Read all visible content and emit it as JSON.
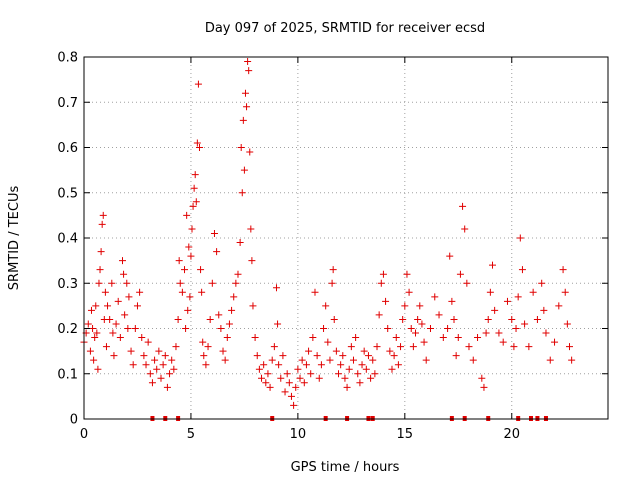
{
  "chart_data": {
    "type": "scatter",
    "title": "Day 097 of 2025, SRMTID for receiver ecsd",
    "xlabel": "GPS time / hours",
    "ylabel": "SRMTID / TECUs",
    "xlim": [
      0,
      24.5
    ],
    "ylim": [
      0,
      0.8
    ],
    "xticks": [
      0,
      5,
      10,
      15,
      20
    ],
    "yticks": [
      0,
      0.1,
      0.2,
      0.3,
      0.4,
      0.5,
      0.6,
      0.7,
      0.8
    ],
    "xtick_labels": [
      "0",
      "5",
      "10",
      "15",
      "20"
    ],
    "ytick_labels": [
      "0",
      "0.1",
      "0.2",
      "0.3",
      "0.4",
      "0.5",
      "0.6",
      "0.7",
      "0.8"
    ],
    "grid": true,
    "marker": "+",
    "color": "#e00000",
    "series": [
      {
        "name": "SRMTID",
        "points": [
          [
            0.0,
            0.17
          ],
          [
            0.1,
            0.19
          ],
          [
            0.2,
            0.21
          ],
          [
            0.3,
            0.15
          ],
          [
            0.35,
            0.24
          ],
          [
            0.4,
            0.2
          ],
          [
            0.45,
            0.13
          ],
          [
            0.5,
            0.18
          ],
          [
            0.55,
            0.25
          ],
          [
            0.6,
            0.19
          ],
          [
            0.65,
            0.11
          ],
          [
            0.7,
            0.3
          ],
          [
            0.75,
            0.33
          ],
          [
            0.8,
            0.37
          ],
          [
            0.85,
            0.43
          ],
          [
            0.9,
            0.45
          ],
          [
            0.95,
            0.22
          ],
          [
            1.0,
            0.28
          ],
          [
            1.05,
            0.16
          ],
          [
            1.1,
            0.25
          ],
          [
            1.2,
            0.22
          ],
          [
            1.3,
            0.3
          ],
          [
            1.35,
            0.19
          ],
          [
            1.4,
            0.14
          ],
          [
            1.5,
            0.21
          ],
          [
            1.6,
            0.26
          ],
          [
            1.7,
            0.18
          ],
          [
            1.8,
            0.35
          ],
          [
            1.85,
            0.32
          ],
          [
            1.9,
            0.23
          ],
          [
            2.0,
            0.3
          ],
          [
            2.05,
            0.2
          ],
          [
            2.1,
            0.27
          ],
          [
            2.2,
            0.15
          ],
          [
            2.3,
            0.12
          ],
          [
            2.4,
            0.2
          ],
          [
            2.5,
            0.25
          ],
          [
            2.6,
            0.28
          ],
          [
            2.7,
            0.18
          ],
          [
            2.8,
            0.14
          ],
          [
            2.9,
            0.12
          ],
          [
            3.0,
            0.17
          ],
          [
            3.1,
            0.1
          ],
          [
            3.2,
            0.08
          ],
          [
            3.3,
            0.13
          ],
          [
            3.4,
            0.11
          ],
          [
            3.5,
            0.15
          ],
          [
            3.6,
            0.09
          ],
          [
            3.7,
            0.12
          ],
          [
            3.8,
            0.14
          ],
          [
            3.9,
            0.07
          ],
          [
            4.0,
            0.1
          ],
          [
            4.1,
            0.13
          ],
          [
            4.2,
            0.11
          ],
          [
            4.3,
            0.16
          ],
          [
            4.4,
            0.22
          ],
          [
            4.45,
            0.35
          ],
          [
            4.5,
            0.3
          ],
          [
            4.6,
            0.28
          ],
          [
            4.7,
            0.33
          ],
          [
            4.75,
            0.2
          ],
          [
            4.8,
            0.45
          ],
          [
            4.85,
            0.24
          ],
          [
            4.9,
            0.38
          ],
          [
            4.95,
            0.27
          ],
          [
            5.0,
            0.36
          ],
          [
            5.05,
            0.42
          ],
          [
            5.1,
            0.47
          ],
          [
            5.15,
            0.51
          ],
          [
            5.2,
            0.54
          ],
          [
            5.25,
            0.48
          ],
          [
            5.3,
            0.61
          ],
          [
            5.35,
            0.74
          ],
          [
            5.4,
            0.6
          ],
          [
            5.45,
            0.33
          ],
          [
            5.5,
            0.28
          ],
          [
            5.55,
            0.17
          ],
          [
            5.6,
            0.14
          ],
          [
            5.7,
            0.12
          ],
          [
            5.8,
            0.16
          ],
          [
            5.9,
            0.22
          ],
          [
            6.0,
            0.3
          ],
          [
            6.1,
            0.41
          ],
          [
            6.2,
            0.37
          ],
          [
            6.3,
            0.23
          ],
          [
            6.4,
            0.2
          ],
          [
            6.5,
            0.15
          ],
          [
            6.6,
            0.13
          ],
          [
            6.7,
            0.18
          ],
          [
            6.8,
            0.21
          ],
          [
            6.9,
            0.24
          ],
          [
            7.0,
            0.27
          ],
          [
            7.1,
            0.3
          ],
          [
            7.2,
            0.32
          ],
          [
            7.3,
            0.39
          ],
          [
            7.35,
            0.6
          ],
          [
            7.4,
            0.5
          ],
          [
            7.45,
            0.66
          ],
          [
            7.5,
            0.55
          ],
          [
            7.55,
            0.72
          ],
          [
            7.6,
            0.69
          ],
          [
            7.65,
            0.79
          ],
          [
            7.7,
            0.77
          ],
          [
            7.75,
            0.59
          ],
          [
            7.8,
            0.42
          ],
          [
            7.85,
            0.35
          ],
          [
            7.9,
            0.25
          ],
          [
            8.0,
            0.18
          ],
          [
            8.1,
            0.14
          ],
          [
            8.2,
            0.11
          ],
          [
            8.3,
            0.09
          ],
          [
            8.4,
            0.12
          ],
          [
            8.5,
            0.08
          ],
          [
            8.6,
            0.1
          ],
          [
            8.7,
            0.07
          ],
          [
            8.8,
            0.13
          ],
          [
            8.9,
            0.16
          ],
          [
            9.0,
            0.29
          ],
          [
            9.05,
            0.21
          ],
          [
            9.1,
            0.12
          ],
          [
            9.2,
            0.09
          ],
          [
            9.3,
            0.14
          ],
          [
            9.4,
            0.06
          ],
          [
            9.5,
            0.1
          ],
          [
            9.6,
            0.08
          ],
          [
            9.7,
            0.05
          ],
          [
            9.8,
            0.03
          ],
          [
            9.9,
            0.07
          ],
          [
            10.0,
            0.11
          ],
          [
            10.1,
            0.09
          ],
          [
            10.2,
            0.13
          ],
          [
            10.3,
            0.08
          ],
          [
            10.4,
            0.12
          ],
          [
            10.5,
            0.15
          ],
          [
            10.6,
            0.1
          ],
          [
            10.7,
            0.18
          ],
          [
            10.8,
            0.28
          ],
          [
            10.9,
            0.14
          ],
          [
            11.0,
            0.09
          ],
          [
            11.1,
            0.12
          ],
          [
            11.2,
            0.2
          ],
          [
            11.3,
            0.25
          ],
          [
            11.4,
            0.17
          ],
          [
            11.5,
            0.13
          ],
          [
            11.6,
            0.3
          ],
          [
            11.65,
            0.33
          ],
          [
            11.7,
            0.22
          ],
          [
            11.8,
            0.15
          ],
          [
            11.9,
            0.1
          ],
          [
            12.0,
            0.12
          ],
          [
            12.1,
            0.14
          ],
          [
            12.2,
            0.09
          ],
          [
            12.3,
            0.07
          ],
          [
            12.4,
            0.11
          ],
          [
            12.5,
            0.16
          ],
          [
            12.6,
            0.13
          ],
          [
            12.7,
            0.18
          ],
          [
            12.8,
            0.1
          ],
          [
            12.9,
            0.08
          ],
          [
            13.0,
            0.12
          ],
          [
            13.1,
            0.15
          ],
          [
            13.2,
            0.11
          ],
          [
            13.3,
            0.14
          ],
          [
            13.4,
            0.09
          ],
          [
            13.5,
            0.13
          ],
          [
            13.6,
            0.1
          ],
          [
            13.7,
            0.16
          ],
          [
            13.8,
            0.23
          ],
          [
            13.9,
            0.3
          ],
          [
            14.0,
            0.32
          ],
          [
            14.1,
            0.26
          ],
          [
            14.2,
            0.2
          ],
          [
            14.3,
            0.15
          ],
          [
            14.4,
            0.11
          ],
          [
            14.5,
            0.14
          ],
          [
            14.6,
            0.18
          ],
          [
            14.7,
            0.12
          ],
          [
            14.8,
            0.16
          ],
          [
            14.9,
            0.22
          ],
          [
            15.0,
            0.25
          ],
          [
            15.1,
            0.32
          ],
          [
            15.2,
            0.28
          ],
          [
            15.3,
            0.2
          ],
          [
            15.4,
            0.16
          ],
          [
            15.5,
            0.19
          ],
          [
            15.6,
            0.22
          ],
          [
            15.7,
            0.25
          ],
          [
            15.8,
            0.21
          ],
          [
            15.9,
            0.17
          ],
          [
            16.0,
            0.13
          ],
          [
            16.2,
            0.2
          ],
          [
            16.4,
            0.27
          ],
          [
            16.6,
            0.23
          ],
          [
            16.8,
            0.18
          ],
          [
            17.0,
            0.2
          ],
          [
            17.1,
            0.36
          ],
          [
            17.2,
            0.26
          ],
          [
            17.3,
            0.22
          ],
          [
            17.4,
            0.14
          ],
          [
            17.5,
            0.18
          ],
          [
            17.6,
            0.32
          ],
          [
            17.7,
            0.47
          ],
          [
            17.8,
            0.42
          ],
          [
            17.9,
            0.3
          ],
          [
            18.0,
            0.16
          ],
          [
            18.2,
            0.13
          ],
          [
            18.4,
            0.18
          ],
          [
            18.6,
            0.09
          ],
          [
            18.7,
            0.07
          ],
          [
            18.8,
            0.19
          ],
          [
            18.9,
            0.22
          ],
          [
            19.0,
            0.28
          ],
          [
            19.1,
            0.34
          ],
          [
            19.2,
            0.24
          ],
          [
            19.4,
            0.19
          ],
          [
            19.6,
            0.17
          ],
          [
            19.8,
            0.26
          ],
          [
            20.0,
            0.22
          ],
          [
            20.1,
            0.16
          ],
          [
            20.2,
            0.2
          ],
          [
            20.3,
            0.27
          ],
          [
            20.4,
            0.4
          ],
          [
            20.5,
            0.33
          ],
          [
            20.6,
            0.21
          ],
          [
            20.8,
            0.16
          ],
          [
            21.0,
            0.28
          ],
          [
            21.2,
            0.22
          ],
          [
            21.4,
            0.3
          ],
          [
            21.5,
            0.24
          ],
          [
            21.6,
            0.19
          ],
          [
            21.8,
            0.13
          ],
          [
            22.0,
            0.17
          ],
          [
            22.2,
            0.25
          ],
          [
            22.4,
            0.33
          ],
          [
            22.5,
            0.28
          ],
          [
            22.6,
            0.21
          ],
          [
            22.7,
            0.16
          ],
          [
            22.8,
            0.13
          ]
        ]
      }
    ],
    "axis_markers_x": [
      3.2,
      3.8,
      4.4,
      8.8,
      11.3,
      12.3,
      13.3,
      13.5,
      17.2,
      17.8,
      18.9,
      20.3,
      20.9,
      21.2,
      21.6
    ]
  }
}
